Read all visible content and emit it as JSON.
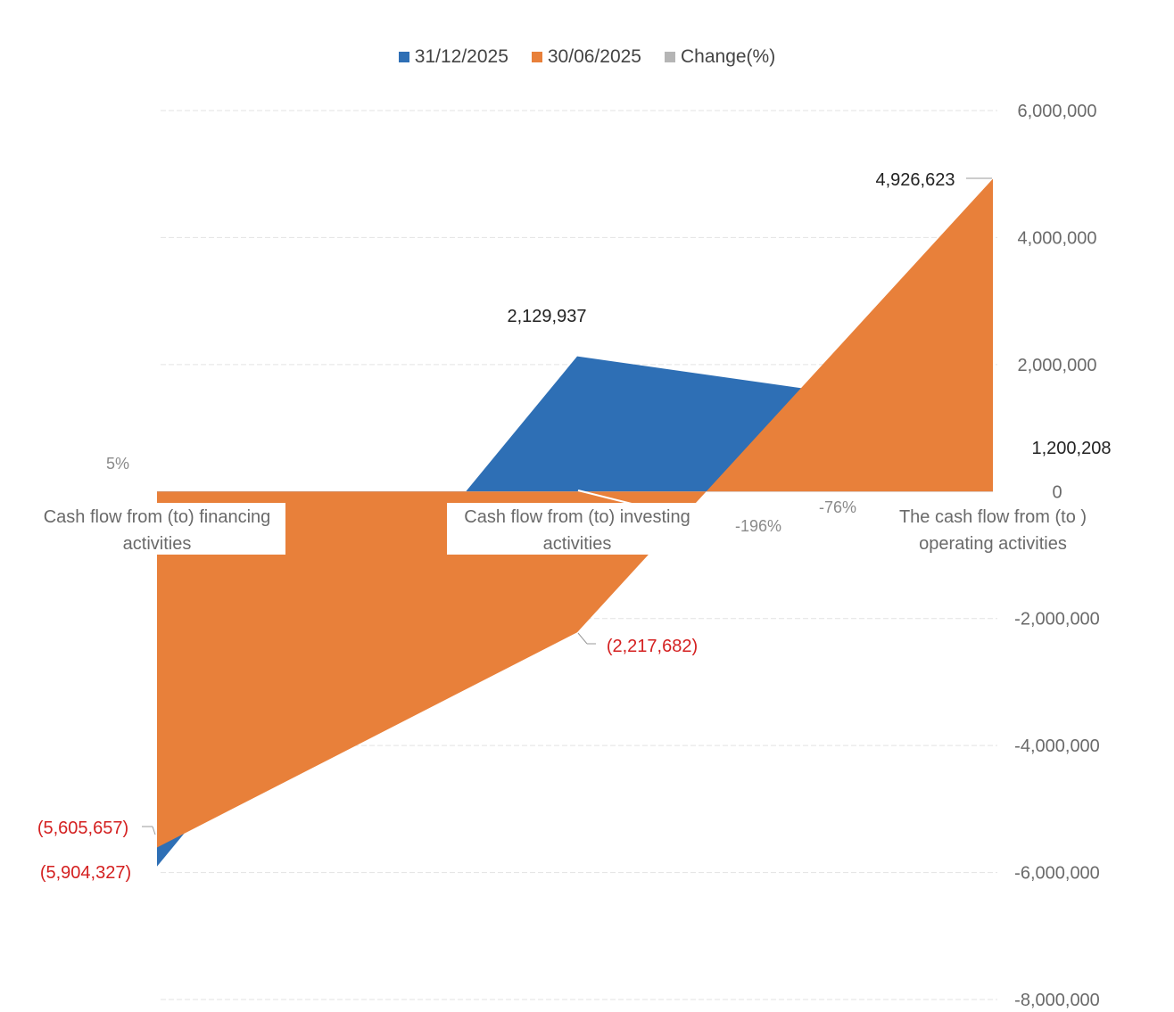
{
  "colors": {
    "series_1": "#2e6fb5",
    "series_2": "#e8803a",
    "series_3": "#b5b5b5",
    "negative_label": "#d42020",
    "axis_text": "#6a6a6a",
    "gridline": "#e3e3e3"
  },
  "chart_data": {
    "type": "area",
    "title": "",
    "xlabel": "",
    "ylabel": "",
    "categories": [
      "Cash flow from (to) financing activities",
      "Cash flow from (to) investing activities",
      "The cash flow from (to ) operating activities"
    ],
    "series": [
      {
        "name": "31/12/2025",
        "values": [
          -5904327,
          2129937,
          1200208
        ]
      },
      {
        "name": "30/06/2025",
        "values": [
          -5605657,
          -2217682,
          4926623
        ]
      },
      {
        "name": "Change(%)",
        "values": [
          5,
          -196,
          -76
        ]
      }
    ],
    "y_axis": {
      "position": "right",
      "ylim": [
        -8000000,
        6000000
      ],
      "ticks": [
        "6,000,000",
        "4,000,000",
        "2,000,000",
        "0",
        "-2,000,000",
        "-4,000,000",
        "-6,000,000",
        "-8,000,000"
      ]
    },
    "data_labels": {
      "31/12/2025": [
        "(5,904,327)",
        "2,129,937",
        "1,200,208"
      ],
      "30/06/2025": [
        "(5,605,657)",
        "(2,217,682)",
        "4,926,623"
      ],
      "Change(%)": [
        "5%",
        "-196%",
        "-76%"
      ]
    },
    "category_labels": [
      [
        "Cash flow from (to) financing",
        "activities"
      ],
      [
        "Cash flow from (to) investing",
        "activities"
      ],
      [
        "The cash flow from (to )",
        "operating activities"
      ]
    ],
    "grid": true,
    "legend": "top-center"
  }
}
